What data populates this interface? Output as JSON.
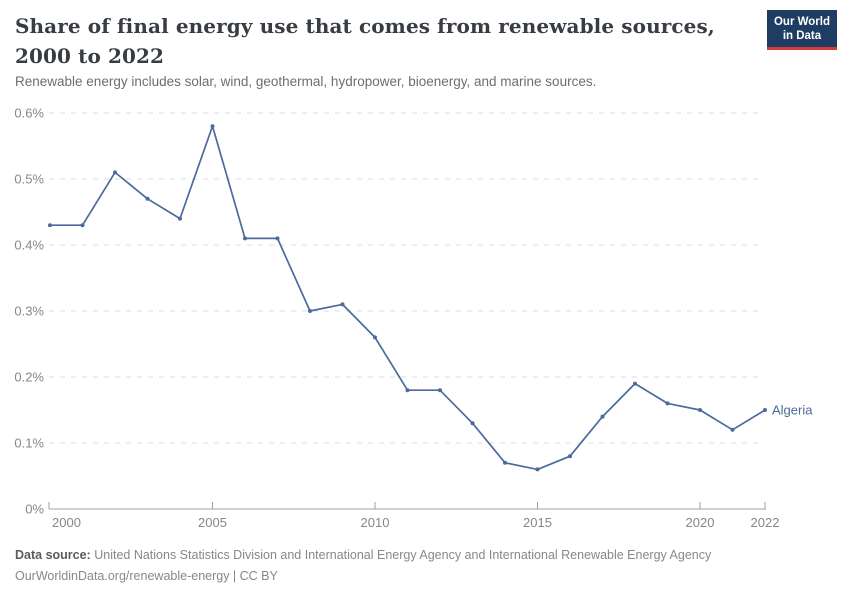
{
  "header": {
    "title": "Share of final energy use that comes from renewable sources, 2000 to 2022",
    "subtitle": "Renewable energy includes solar, wind, geothermal, hydropower, bioenergy, and marine sources.",
    "logo": {
      "line1": "Our World",
      "line2": "in Data"
    }
  },
  "chart_data": {
    "type": "line",
    "title": "Share of final energy use that comes from renewable sources, 2000 to 2022",
    "x": [
      2000,
      2001,
      2002,
      2003,
      2004,
      2005,
      2006,
      2007,
      2008,
      2009,
      2010,
      2011,
      2012,
      2013,
      2014,
      2015,
      2016,
      2017,
      2018,
      2019,
      2020,
      2021,
      2022
    ],
    "series": [
      {
        "name": "Algeria",
        "values": [
          0.43,
          0.43,
          0.51,
          0.47,
          0.44,
          0.58,
          0.41,
          0.41,
          0.3,
          0.31,
          0.26,
          0.18,
          0.18,
          0.13,
          0.07,
          0.06,
          0.08,
          0.14,
          0.19,
          0.16,
          0.15,
          0.12,
          0.15
        ],
        "color": "#4C6A9C"
      }
    ],
    "unit": "%",
    "ylabel": "",
    "xlabel": "",
    "ylim": [
      0,
      0.6
    ],
    "xlim": [
      2000,
      2022
    ],
    "grid": "dashed-horizontal",
    "legend_position": "end-of-line-label",
    "end_label": "Algeria",
    "y_ticks": [
      {
        "value": 0,
        "label": "0%"
      },
      {
        "value": 0.1,
        "label": "0.1%"
      },
      {
        "value": 0.2,
        "label": "0.2%"
      },
      {
        "value": 0.3,
        "label": "0.3%"
      },
      {
        "value": 0.4,
        "label": "0.4%"
      },
      {
        "value": 0.5,
        "label": "0.5%"
      },
      {
        "value": 0.6,
        "label": "0.6%"
      }
    ],
    "x_ticks": [
      {
        "value": 2000,
        "label": "2000"
      },
      {
        "value": 2005,
        "label": "2005"
      },
      {
        "value": 2010,
        "label": "2010"
      },
      {
        "value": 2015,
        "label": "2015"
      },
      {
        "value": 2020,
        "label": "2020"
      },
      {
        "value": 2022,
        "label": "2022"
      }
    ]
  },
  "footer": {
    "data_source_label": "Data source:",
    "data_source_text": "United Nations Statistics Division and International Energy Agency and International Renewable Energy Agency",
    "link_line": "OurWorldinData.org/renewable-energy | CC BY"
  },
  "colors": {
    "series": "#4C6A9C",
    "grid": "#dcdcdc",
    "axis": "#a0a0a0",
    "tick_text": "#878787",
    "logo_bg": "#1d3d63",
    "logo_stripe": "#d8393a",
    "title_text": "#383d44",
    "subtitle_text": "#6e6e6e"
  }
}
